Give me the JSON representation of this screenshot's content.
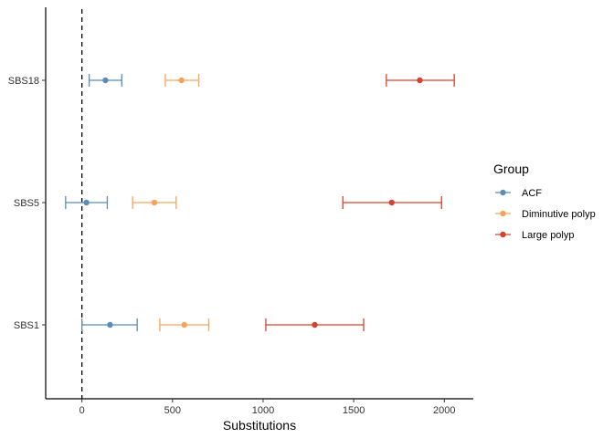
{
  "chart_data": {
    "type": "scatter",
    "subtype": "point-range (mean with error bars)",
    "title": "",
    "xlabel": "Substitutions",
    "ylabel": "",
    "xlim": [
      -200,
      2160
    ],
    "x_ticks": [
      0,
      500,
      1000,
      1500,
      2000
    ],
    "x_tick_labels": [
      "0",
      "500",
      "1000",
      "1500",
      "2000"
    ],
    "categories": [
      "SBS1",
      "SBS5",
      "SBS18"
    ],
    "reference_line": {
      "x": 0,
      "style": "dashed"
    },
    "grid": false,
    "legend": {
      "title": "Group",
      "placement": "right"
    },
    "series": [
      {
        "name": "ACF",
        "color": "#5B8DB8",
        "points": [
          {
            "category": "SBS1",
            "value": 155,
            "low": 0,
            "high": 305
          },
          {
            "category": "SBS5",
            "value": 25,
            "low": -90,
            "high": 140
          },
          {
            "category": "SBS18",
            "value": 130,
            "low": 40,
            "high": 220
          }
        ]
      },
      {
        "name": "Diminutive polyp",
        "color": "#F5A35A",
        "points": [
          {
            "category": "SBS1",
            "value": 565,
            "low": 430,
            "high": 700
          },
          {
            "category": "SBS5",
            "value": 400,
            "low": 280,
            "high": 520
          },
          {
            "category": "SBS18",
            "value": 550,
            "low": 460,
            "high": 645
          }
        ]
      },
      {
        "name": "Large polyp",
        "color": "#D4432D",
        "points": [
          {
            "category": "SBS1",
            "value": 1285,
            "low": 1015,
            "high": 1555
          },
          {
            "category": "SBS5",
            "value": 1710,
            "low": 1440,
            "high": 1985
          },
          {
            "category": "SBS18",
            "value": 1865,
            "low": 1680,
            "high": 2055
          }
        ]
      }
    ]
  }
}
